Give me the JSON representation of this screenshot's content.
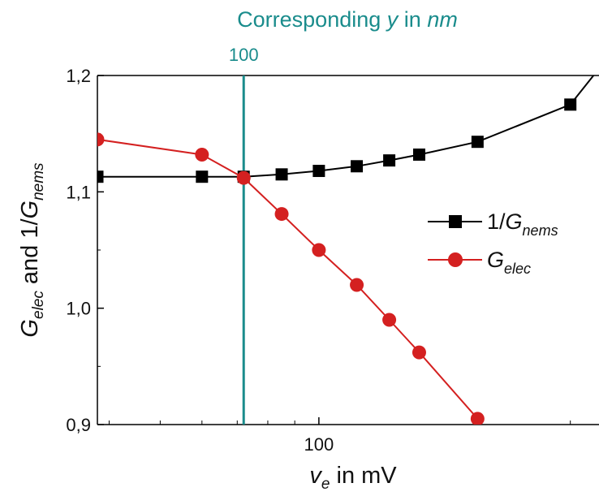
{
  "chart_data": {
    "type": "line",
    "title": "",
    "top_axis": {
      "title_parts": [
        "Corresponding ",
        "y",
        " in ",
        "nm"
      ],
      "tick_labels": [
        "100"
      ],
      "tick_values": [
        72
      ]
    },
    "xlabel_parts": [
      "v",
      "e",
      " in mV"
    ],
    "ylabel_parts": [
      "G",
      "elec",
      " and 1/",
      "G",
      "nems"
    ],
    "x_scale": "log",
    "xlim": [
      38,
      340
    ],
    "ylim": [
      0.9,
      1.2
    ],
    "x_ticks": [
      100
    ],
    "x_tick_labels": [
      "100"
    ],
    "y_ticks": [
      0.9,
      1.0,
      1.1,
      1.2
    ],
    "y_tick_labels": [
      "0,9",
      "1,0",
      "1,1",
      "1,2"
    ],
    "grid": false,
    "legend_position": "middle-right",
    "vertical_marker": {
      "x": 72,
      "color": "#1a8c8c"
    },
    "series": [
      {
        "name_parts": [
          "1/",
          "G",
          "nems"
        ],
        "marker": "square",
        "color": "#000000",
        "x": [
          38,
          60,
          72,
          85,
          100,
          118,
          136,
          155,
          200,
          300,
          360
        ],
        "y": [
          1.113,
          1.113,
          1.113,
          1.115,
          1.118,
          1.122,
          1.127,
          1.132,
          1.143,
          1.175,
          1.22
        ]
      },
      {
        "name_parts": [
          "G",
          "elec"
        ],
        "marker": "circle",
        "color": "#d42020",
        "x": [
          38,
          60,
          72,
          85,
          100,
          118,
          136,
          155,
          200
        ],
        "y": [
          1.145,
          1.132,
          1.112,
          1.081,
          1.05,
          1.02,
          0.99,
          0.962,
          0.905
        ]
      }
    ]
  }
}
